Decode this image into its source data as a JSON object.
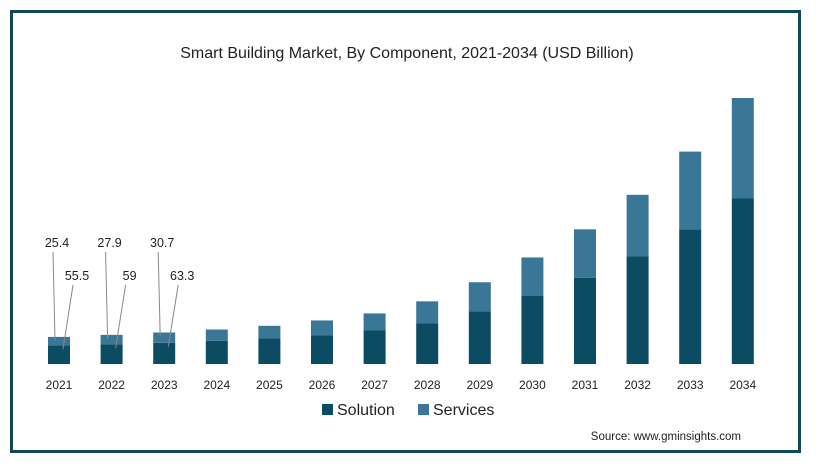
{
  "chart_data": {
    "type": "bar",
    "stacked": true,
    "title": "Smart Building Market, By Component, 2021-2034 (USD Billion)",
    "categories": [
      "2021",
      "2022",
      "2023",
      "2024",
      "2025",
      "2026",
      "2027",
      "2028",
      "2029",
      "2030",
      "2031",
      "2032",
      "2033",
      "2034"
    ],
    "series": [
      {
        "name": "Solution",
        "color": "#0c4c63",
        "values": [
          55.5,
          59,
          63.3,
          69,
          76,
          86,
          100,
          122,
          157,
          203,
          257,
          321,
          402,
          494
        ]
      },
      {
        "name": "Services",
        "color": "#3a7797",
        "values": [
          25.4,
          27.9,
          30.7,
          34,
          38,
          44,
          51,
          65,
          87,
          115,
          145,
          184,
          232,
          300
        ]
      }
    ],
    "data_labels": [
      {
        "category": "2021",
        "series": "Services",
        "text": "25.4"
      },
      {
        "category": "2021",
        "series": "Solution",
        "text": "55.5"
      },
      {
        "category": "2022",
        "series": "Services",
        "text": "27.9"
      },
      {
        "category": "2022",
        "series": "Solution",
        "text": "59"
      },
      {
        "category": "2023",
        "series": "Services",
        "text": "30.7"
      },
      {
        "category": "2023",
        "series": "Solution",
        "text": "63.3"
      }
    ],
    "ylim": [
      0,
      800
    ],
    "grid": false,
    "legend": "bottom-center"
  },
  "source": "Source: www.gminsights.com"
}
